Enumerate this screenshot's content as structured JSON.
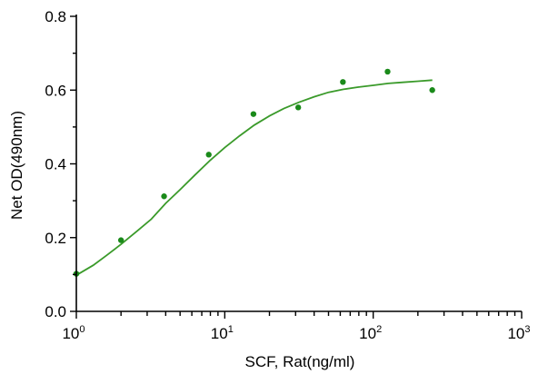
{
  "chart_data": {
    "type": "scatter",
    "title": "",
    "xlabel": "SCF, Rat(ng/ml)",
    "ylabel": "Net OD(490nm)",
    "x_scale": "log",
    "xlim": [
      1,
      1000
    ],
    "ylim": [
      0,
      0.8
    ],
    "x_ticks": [
      {
        "value": 1,
        "base": "10",
        "exp": "0"
      },
      {
        "value": 10,
        "base": "10",
        "exp": "1"
      },
      {
        "value": 100,
        "base": "10",
        "exp": "2"
      },
      {
        "value": 1000,
        "base": "10",
        "exp": "3"
      }
    ],
    "y_ticks": [
      {
        "value": 0,
        "label": "0.0"
      },
      {
        "value": 0.2,
        "label": "0.2"
      },
      {
        "value": 0.4,
        "label": "0.4"
      },
      {
        "value": 0.6,
        "label": "0.6"
      },
      {
        "value": 0.8,
        "label": "0.8"
      }
    ],
    "grid": false,
    "series": [
      {
        "kind": "points",
        "color": "#1a8a1a",
        "x": [
          1,
          2,
          3.9,
          7.8,
          15.6,
          31.25,
          62.5,
          125,
          250
        ],
        "y": [
          0.102,
          0.193,
          0.312,
          0.425,
          0.535,
          0.553,
          0.622,
          0.65,
          0.6
        ]
      },
      {
        "kind": "fit-curve",
        "color": "#3a9a2a",
        "x": [
          1,
          1.3,
          1.6,
          2,
          2.5,
          3.2,
          4,
          5,
          6.3,
          8,
          10,
          12.6,
          15.8,
          20,
          25,
          31.6,
          40,
          50,
          63,
          79,
          100,
          126,
          158,
          200,
          250
        ],
        "y": [
          0.098,
          0.125,
          0.152,
          0.182,
          0.214,
          0.25,
          0.293,
          0.33,
          0.37,
          0.41,
          0.444,
          0.476,
          0.505,
          0.53,
          0.55,
          0.567,
          0.582,
          0.594,
          0.602,
          0.608,
          0.613,
          0.618,
          0.621,
          0.624,
          0.627
        ]
      }
    ]
  }
}
